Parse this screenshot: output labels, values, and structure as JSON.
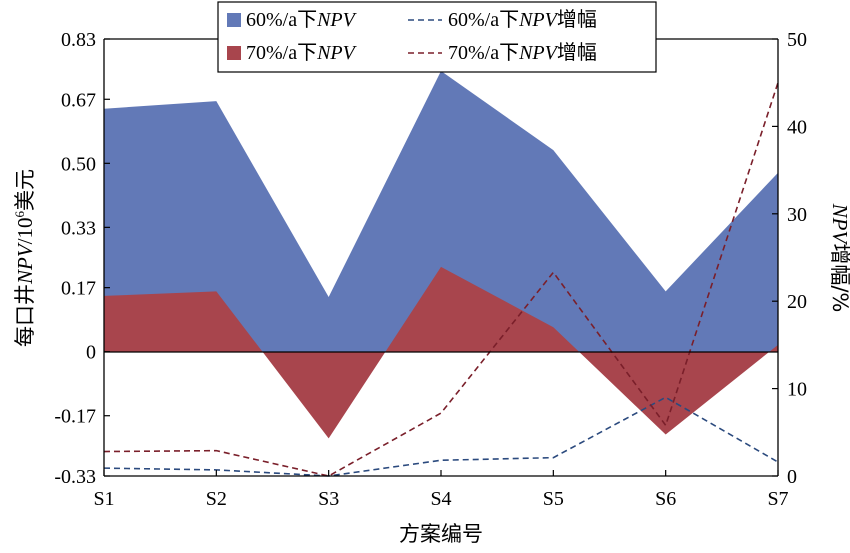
{
  "chart_data": {
    "type": "area",
    "categories": [
      "S1",
      "S2",
      "S3",
      "S4",
      "S5",
      "S6",
      "S7"
    ],
    "xlabel": "方案编号",
    "ylabel_left": {
      "prefix": "每口井",
      "italic": "NPV",
      "mid": "/10",
      "sup": "6",
      "suffix": "美元"
    },
    "ylabel_right": {
      "italic": "NPV",
      "suffix": "增幅/%"
    },
    "ylim_left": [
      -0.33,
      0.83
    ],
    "ylim_right": [
      0,
      50
    ],
    "yticks_left": [
      "0.83",
      "0.67",
      "0.50",
      "0.33",
      "0.17",
      "0",
      "-0.17",
      "-0.33"
    ],
    "yticks_left_values": [
      0.83,
      0.67,
      0.5,
      0.33,
      0.17,
      0,
      -0.17,
      -0.33
    ],
    "yticks_right": [
      "50",
      "40",
      "30",
      "20",
      "10",
      "0"
    ],
    "yticks_right_values": [
      50,
      40,
      30,
      20,
      10,
      0
    ],
    "legend_position": "top-center",
    "series": [
      {
        "key": "npv60",
        "kind": "area",
        "axis": "left",
        "color": "#6279b7",
        "label_prefix": "60%/a下",
        "label_italic": "NPV",
        "label_suffix": "",
        "values": [
          0.645,
          0.665,
          0.145,
          0.745,
          0.535,
          0.16,
          0.475
        ]
      },
      {
        "key": "npv70",
        "kind": "area",
        "axis": "left",
        "color": "#a8454d",
        "label_prefix": "70%/a下",
        "label_italic": "NPV",
        "label_suffix": "",
        "values": [
          0.148,
          0.16,
          -0.23,
          0.225,
          0.065,
          -0.22,
          0.018
        ]
      },
      {
        "key": "inc60",
        "kind": "dashed-line",
        "axis": "right",
        "color": "#2b4a7e",
        "label_prefix": "60%/a下",
        "label_italic": "NPV",
        "label_suffix": "增幅",
        "values": [
          0.9,
          0.7,
          0,
          1.8,
          2.1,
          9.0,
          1.6
        ]
      },
      {
        "key": "inc70",
        "kind": "dashed-line",
        "axis": "right",
        "color": "#7a1f2a",
        "label_prefix": "70%/a下",
        "label_italic": "NPV",
        "label_suffix": "增幅",
        "values": [
          2.8,
          2.9,
          0,
          7.2,
          23.3,
          5.8,
          45.0
        ]
      }
    ]
  }
}
